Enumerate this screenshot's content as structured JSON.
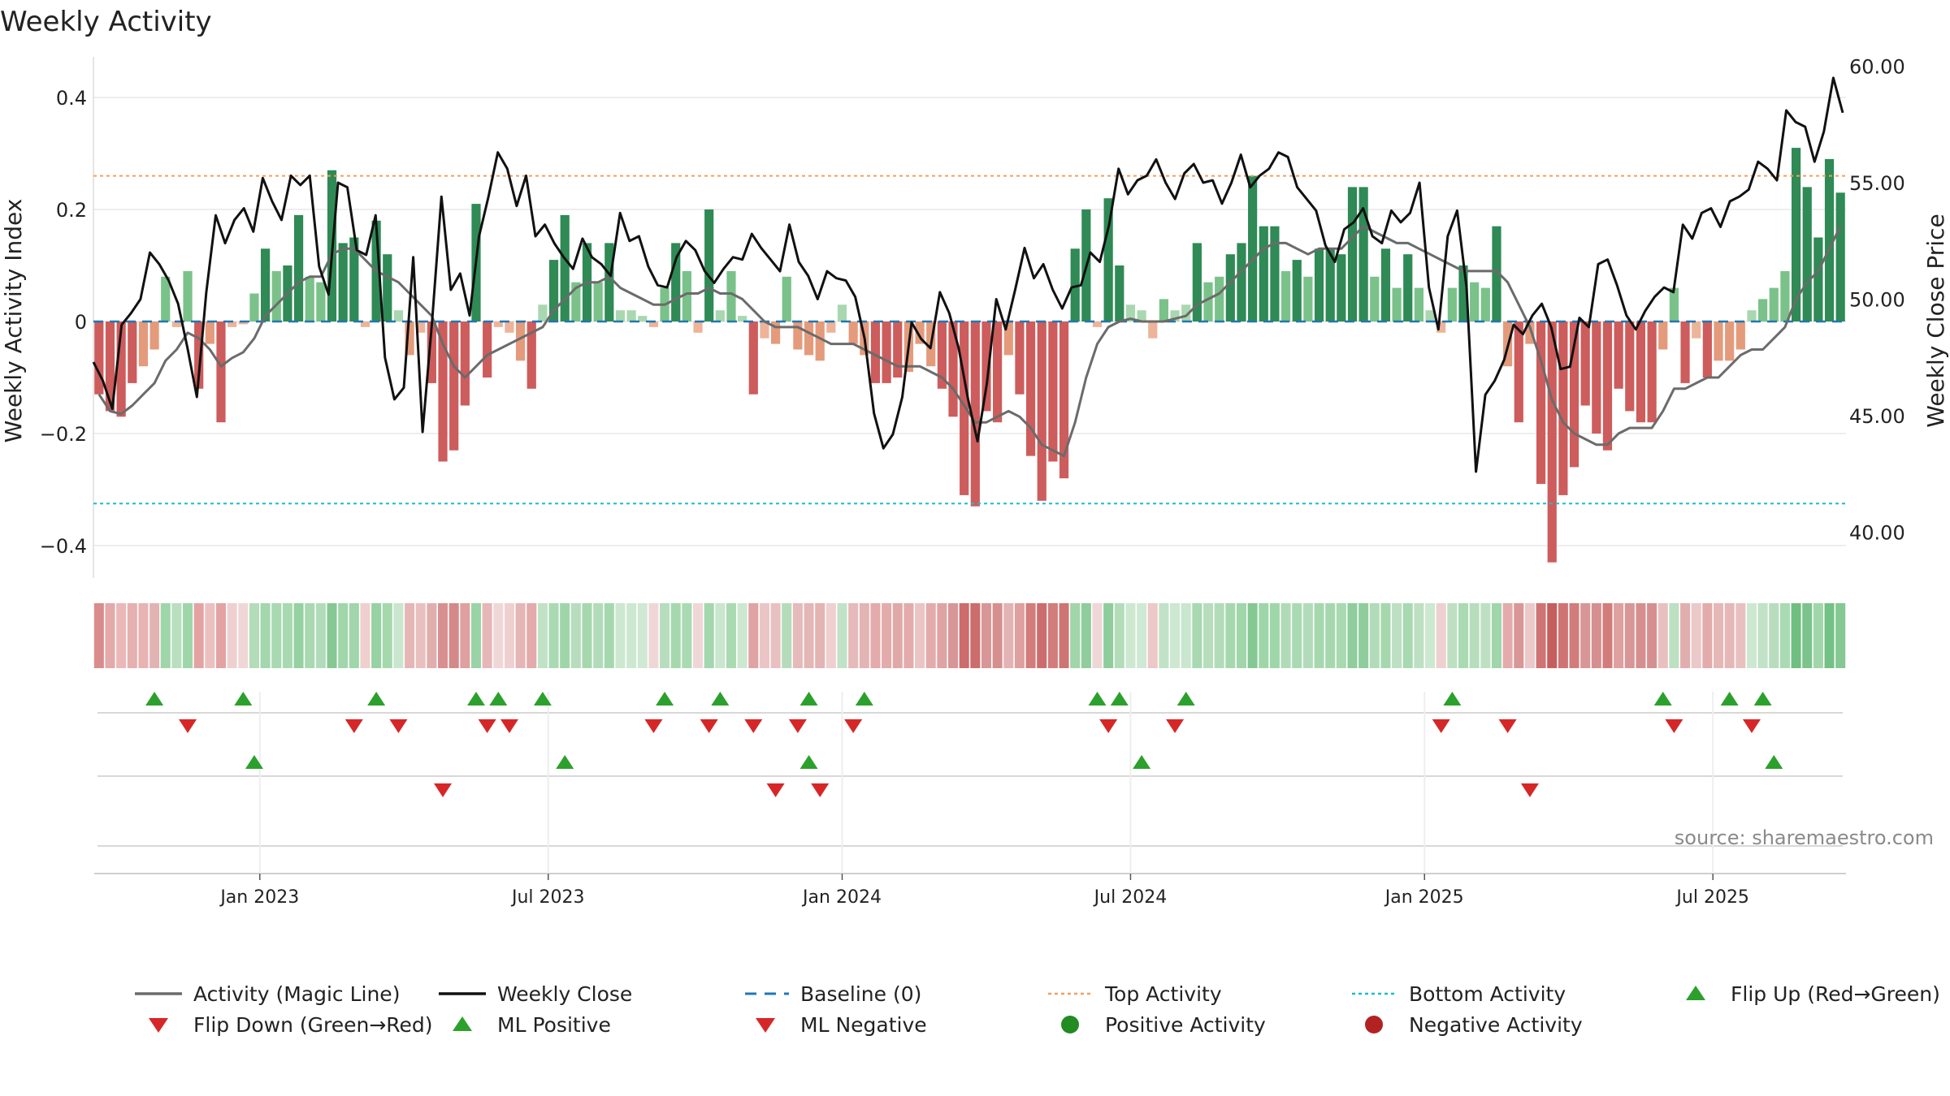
{
  "chart_data": {
    "type": "bar+line",
    "title": "Weekly Activity",
    "ylabel_left": "Weekly Activity Index",
    "ylabel_right": "Weekly Close Price",
    "left_ticks": [
      "0.4",
      "0.2",
      "0",
      "−0.2",
      "−0.4"
    ],
    "left_tick_values": [
      0.4,
      0.2,
      0,
      -0.2,
      -0.4
    ],
    "right_ticks": [
      "60.00",
      "55.00",
      "50.00",
      "45.00",
      "40.00"
    ],
    "right_tick_values": [
      60,
      55,
      50,
      45,
      40
    ],
    "ylim_left": [
      -0.46,
      0.46
    ],
    "ylim_right": [
      38.7,
      60.7
    ],
    "top_activity": 0.26,
    "bottom_activity": -0.325,
    "x_tick_labels": [
      "Jan 2023",
      "Jul 2023",
      "Jan 2024",
      "Jul 2024",
      "Jan 2025",
      "Jul 2025"
    ],
    "x_tick_weeks": [
      14.5,
      40.5,
      67,
      93,
      119.5,
      145.5
    ],
    "n_weeks": 158,
    "activity": [
      -0.13,
      -0.16,
      -0.17,
      -0.11,
      -0.08,
      -0.05,
      0.08,
      -0.01,
      0.09,
      -0.12,
      -0.04,
      -0.18,
      -0.01,
      -0.005,
      0.05,
      0.13,
      0.09,
      0.1,
      0.19,
      0.08,
      0.07,
      0.27,
      0.14,
      0.15,
      -0.01,
      0.18,
      0.12,
      0.02,
      -0.06,
      -0.02,
      -0.11,
      -0.25,
      -0.23,
      -0.15,
      0.21,
      -0.1,
      -0.01,
      -0.02,
      -0.07,
      -0.12,
      0.03,
      0.11,
      0.19,
      0.07,
      0.14,
      0.07,
      0.14,
      0.02,
      0.02,
      0.01,
      -0.01,
      0.06,
      0.14,
      0.09,
      -0.02,
      0.2,
      0.02,
      0.09,
      0.01,
      -0.13,
      -0.03,
      -0.04,
      0.08,
      -0.05,
      -0.06,
      -0.07,
      -0.02,
      0.03,
      -0.04,
      -0.06,
      -0.11,
      -0.11,
      -0.1,
      -0.09,
      -0.04,
      -0.08,
      -0.12,
      -0.17,
      -0.31,
      -0.33,
      -0.16,
      -0.18,
      -0.06,
      -0.13,
      -0.24,
      -0.32,
      -0.25,
      -0.28,
      0.13,
      0.2,
      -0.01,
      0.22,
      0.1,
      0.03,
      0.02,
      -0.03,
      0.04,
      0.02,
      0.03,
      0.14,
      0.07,
      0.08,
      0.12,
      0.14,
      0.26,
      0.17,
      0.17,
      0.09,
      0.11,
      0.08,
      0.13,
      0.13,
      0.12,
      0.24,
      0.24,
      0.08,
      0.13,
      0.06,
      0.12,
      0.06,
      0.02,
      -0.02,
      0.06,
      0.1,
      0.07,
      0.06,
      0.17,
      -0.08,
      -0.18,
      -0.04,
      -0.29,
      -0.43,
      -0.31,
      -0.26,
      -0.15,
      -0.2,
      -0.23,
      -0.12,
      -0.16,
      -0.18,
      -0.18,
      -0.05,
      0.06,
      -0.11,
      -0.03,
      -0.1,
      -0.07,
      -0.07,
      -0.05,
      0.02,
      0.04,
      0.06,
      0.09,
      0.31,
      0.24,
      0.15,
      0.29,
      0.23
    ],
    "magic_line": [
      -0.13,
      -0.16,
      -0.165,
      -0.15,
      -0.13,
      -0.11,
      -0.07,
      -0.05,
      -0.02,
      -0.03,
      -0.05,
      -0.08,
      -0.065,
      -0.055,
      -0.03,
      0.01,
      0.03,
      0.05,
      0.07,
      0.08,
      0.08,
      0.12,
      0.13,
      0.13,
      0.11,
      0.09,
      0.08,
      0.07,
      0.05,
      0.03,
      0.01,
      -0.04,
      -0.08,
      -0.1,
      -0.08,
      -0.06,
      -0.05,
      -0.04,
      -0.03,
      -0.02,
      -0.01,
      0.02,
      0.04,
      0.06,
      0.07,
      0.07,
      0.08,
      0.06,
      0.05,
      0.04,
      0.03,
      0.03,
      0.04,
      0.05,
      0.05,
      0.06,
      0.05,
      0.05,
      0.04,
      0.02,
      0.0,
      -0.01,
      -0.01,
      -0.01,
      -0.02,
      -0.03,
      -0.04,
      -0.04,
      -0.04,
      -0.05,
      -0.06,
      -0.07,
      -0.08,
      -0.08,
      -0.08,
      -0.09,
      -0.1,
      -0.12,
      -0.15,
      -0.18,
      -0.18,
      -0.17,
      -0.16,
      -0.17,
      -0.19,
      -0.22,
      -0.23,
      -0.24,
      -0.18,
      -0.1,
      -0.04,
      -0.01,
      0.0,
      0.005,
      0.0,
      0.0,
      0.0,
      0.005,
      0.01,
      0.03,
      0.04,
      0.05,
      0.07,
      0.09,
      0.11,
      0.13,
      0.14,
      0.14,
      0.13,
      0.12,
      0.13,
      0.13,
      0.13,
      0.15,
      0.17,
      0.16,
      0.15,
      0.14,
      0.14,
      0.13,
      0.12,
      0.11,
      0.1,
      0.09,
      0.09,
      0.09,
      0.09,
      0.07,
      0.03,
      -0.01,
      -0.07,
      -0.14,
      -0.18,
      -0.2,
      -0.21,
      -0.22,
      -0.22,
      -0.2,
      -0.19,
      -0.19,
      -0.19,
      -0.16,
      -0.12,
      -0.12,
      -0.11,
      -0.1,
      -0.1,
      -0.08,
      -0.06,
      -0.05,
      -0.05,
      -0.03,
      -0.01,
      0.04,
      0.07,
      0.09,
      0.13,
      0.17
    ],
    "weekly_close": [
      47.3,
      46.5,
      45.3,
      48.9,
      49.4,
      50.0,
      52.0,
      51.5,
      50.8,
      49.8,
      47.9,
      45.8,
      50.3,
      53.6,
      52.4,
      53.4,
      53.9,
      52.9,
      55.2,
      54.2,
      53.4,
      55.3,
      54.9,
      55.3,
      51.4,
      50.2,
      55.0,
      54.8,
      52.1,
      51.9,
      53.6,
      47.5,
      45.7,
      46.2,
      51.8,
      44.3,
      49.0,
      54.4,
      50.4,
      51.1,
      49.3,
      52.7,
      54.4,
      56.3,
      55.6,
      54.0,
      55.3,
      52.7,
      53.2,
      52.4,
      51.8,
      51.3,
      52.6,
      51.8,
      51.5,
      51.0,
      53.7,
      52.5,
      52.7,
      51.4,
      50.6,
      50.5,
      51.8,
      52.5,
      52.1,
      51.2,
      50.7,
      51.3,
      51.8,
      51.7,
      52.8,
      52.2,
      51.7,
      51.2,
      53.2,
      51.6,
      51.0,
      50.0,
      51.2,
      50.9,
      50.8,
      50.1,
      48.3,
      45.1,
      43.6,
      44.2,
      45.8,
      49.0,
      48.3,
      47.9,
      50.3,
      49.4,
      47.9,
      45.7,
      43.9,
      46.4,
      50.0,
      48.7,
      50.4,
      52.2,
      50.9,
      51.5,
      50.4,
      49.6,
      50.5,
      50.6,
      52.0,
      51.6,
      53.2,
      55.6,
      54.5,
      55.1,
      55.3,
      56.0,
      55.0,
      54.3,
      55.4,
      55.8,
      55.0,
      55.1,
      54.1,
      55.0,
      56.2,
      54.8,
      55.3,
      55.6,
      56.3,
      56.1,
      54.8,
      54.3,
      53.8,
      52.3,
      51.6,
      53.0,
      53.3,
      53.9,
      52.7,
      52.4,
      53.8,
      53.3,
      53.7,
      55.0,
      50.5,
      48.7,
      52.7,
      53.8,
      50.5,
      42.6,
      45.9,
      46.5,
      47.4,
      48.9,
      48.5,
      49.3,
      49.8,
      48.8,
      47.0,
      47.1,
      49.2,
      48.8,
      51.5,
      51.7,
      50.6,
      49.3,
      48.7,
      49.5,
      50.1,
      50.5,
      50.3,
      53.2,
      52.6,
      53.7,
      53.9,
      53.1,
      54.2,
      54.4,
      54.7,
      55.9,
      55.6,
      55.1,
      58.1,
      57.6,
      57.4,
      55.9,
      57.2,
      59.5,
      58.0
    ]
  },
  "strip": {
    "colors": [
      "#d98c8c",
      "#e4a9a9",
      "#eab8b8",
      "#e6b0b0",
      "#e8b3b3",
      "#e1b4b4",
      "#9fd6a9",
      "#b9dfbf",
      "#9fd6a9",
      "#e3a3a3",
      "#edc0c0",
      "#e3a3a3",
      "#efd0d0",
      "#f0d7d7",
      "#b3dcb9",
      "#a3d7ad",
      "#a8d9b1",
      "#a8d9b1",
      "#95d1a1",
      "#a8d9b1",
      "#b2dcb9",
      "#85c893",
      "#a0d6aa",
      "#a0d6aa",
      "#f0cfcf",
      "#97d2a3",
      "#a6d8ae",
      "#c9e6ce",
      "#e5b6b6",
      "#e9c0c0",
      "#e1aeae",
      "#d88f8f",
      "#d58888",
      "#dfa0a0",
      "#9ad3a6",
      "#e6b7b7",
      "#f0d7d7",
      "#efd0d0",
      "#e5b6b6",
      "#e3abab",
      "#c1e2c6",
      "#aadab2",
      "#9fd6a9",
      "#b7ddbd",
      "#a6d8ae",
      "#b2dcb9",
      "#a6d8ae",
      "#cde8d1",
      "#cde8d1",
      "#d0e9d4",
      "#f0d7d7",
      "#b8ddbe",
      "#a6d8ae",
      "#aadab2",
      "#f0d7d7",
      "#a3d7ad",
      "#c9e6ce",
      "#aadab2",
      "#cde8d1",
      "#dfa3a3",
      "#ebc5c5",
      "#e9c0c0",
      "#b4dcba",
      "#e6baba",
      "#e5b6b6",
      "#e4b3b3",
      "#efcfcf",
      "#c1e2c6",
      "#e6baba",
      "#e4b3b3",
      "#e3abab",
      "#e3abab",
      "#e1a8a8",
      "#e3abab",
      "#ebc5c5",
      "#e3abab",
      "#e0a3a3",
      "#d99696",
      "#cc6c6c",
      "#cc6c6c",
      "#d99696",
      "#d68f8f",
      "#e4b3b3",
      "#dfa0a0",
      "#d27c7c",
      "#cc6c6c",
      "#d27c7c",
      "#cf7474",
      "#a0d6aa",
      "#8fcd9c",
      "#f0d7d7",
      "#8fcd9c",
      "#b3dcb9",
      "#cde8d1",
      "#d0e9d4",
      "#ecc8c8",
      "#c1e2c6",
      "#cde8d1",
      "#c9e6ce",
      "#a8d9b1",
      "#b7ddbd",
      "#b2dcb9",
      "#a6d8ae",
      "#a0d6aa",
      "#85c893",
      "#9fd6a9",
      "#9fd6a9",
      "#b0dbb7",
      "#aadab2",
      "#b2dcb9",
      "#a6d8ae",
      "#a6d8ae",
      "#a8d9b1",
      "#8fcd9c",
      "#8fcd9c",
      "#b2dcb9",
      "#a6d8ae",
      "#bde0c2",
      "#a8d9b1",
      "#bde0c2",
      "#cde8d1",
      "#efd0d0",
      "#bde0c2",
      "#aadab2",
      "#b7ddbd",
      "#bde0c2",
      "#a0d6aa",
      "#e3abab",
      "#d99696",
      "#ecc8c8",
      "#cf7474",
      "#c65e5e",
      "#cf7474",
      "#d27c7c",
      "#d99696",
      "#d68f8f",
      "#d27c7c",
      "#dfa0a0",
      "#d99696",
      "#d68f8f",
      "#d68f8f",
      "#e9c0c0",
      "#bde0c2",
      "#e1aeae",
      "#ecc8c8",
      "#e3abab",
      "#e6b7b7",
      "#e6b7b7",
      "#e9c0c0",
      "#cde8d1",
      "#c1e2c6",
      "#b7ddbd",
      "#aadab2",
      "#6fbf81",
      "#7cc48c",
      "#a0d6aa",
      "#74c185",
      "#85c893"
    ]
  },
  "markers": {
    "row1_up": [
      5,
      13,
      25,
      34,
      36,
      40,
      51,
      56,
      64,
      69,
      90,
      92,
      98,
      122,
      141,
      147,
      150
    ],
    "row1_down": [
      8,
      23,
      27,
      35,
      37,
      50,
      55,
      59,
      63,
      68,
      91,
      97,
      121,
      127,
      142,
      149
    ],
    "row2_up": [
      14,
      42,
      64,
      94,
      151
    ],
    "row2_down": [
      31,
      61,
      65,
      129
    ]
  },
  "source": "source: sharemaestro.com",
  "legend": [
    {
      "label": "Activity (Magic Line)",
      "kind": "line",
      "color": "#6b6b6b"
    },
    {
      "label": "Weekly Close",
      "kind": "line",
      "color": "#111111"
    },
    {
      "label": "Baseline (0)",
      "kind": "dash",
      "color": "#1f77b4"
    },
    {
      "label": "Top Activity",
      "kind": "dot",
      "color": "#f0a060"
    },
    {
      "label": "Bottom Activity",
      "kind": "dot",
      "color": "#17becf"
    },
    {
      "label": "Flip Up (Red→Green)",
      "kind": "up",
      "color": "#2ca02c"
    },
    {
      "label": "Flip Down (Green→Red)",
      "kind": "down",
      "color": "#d62728"
    },
    {
      "label": "ML Positive",
      "kind": "up",
      "color": "#2ca02c"
    },
    {
      "label": "ML Negative",
      "kind": "down",
      "color": "#d62728"
    },
    {
      "label": "Positive Activity",
      "kind": "circle",
      "color": "#228b22"
    },
    {
      "label": "Negative Activity",
      "kind": "circle",
      "color": "#b22222"
    }
  ]
}
